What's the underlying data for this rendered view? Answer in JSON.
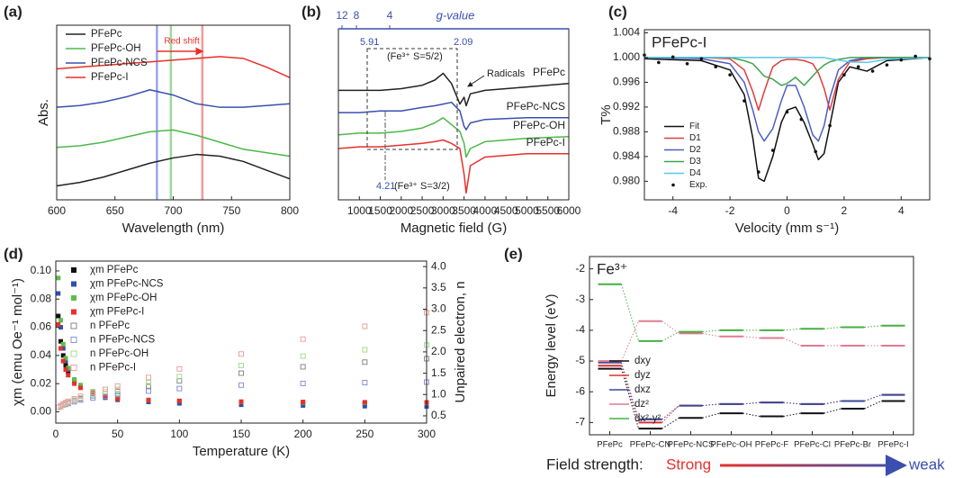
{
  "chart_data": [
    {
      "type": "line",
      "label": "(a)",
      "xlabel": "Wavelength (nm)",
      "ylabel": "Abs.",
      "xlim": [
        600,
        800
      ],
      "xticks": [
        600,
        650,
        700,
        750,
        800
      ],
      "ylim": [
        0,
        1
      ],
      "legend": "upper-left",
      "x": [
        600,
        620,
        640,
        660,
        680,
        700,
        720,
        740,
        760,
        780,
        800
      ],
      "series": [
        {
          "name": "PFePc",
          "color": "#222222",
          "values": [
            0.08,
            0.1,
            0.13,
            0.17,
            0.21,
            0.24,
            0.26,
            0.25,
            0.22,
            0.17,
            0.12
          ]
        },
        {
          "name": "PFePc-OH",
          "color": "#4db84a",
          "values": [
            0.3,
            0.31,
            0.33,
            0.36,
            0.39,
            0.4,
            0.37,
            0.33,
            0.29,
            0.27,
            0.25
          ]
        },
        {
          "name": "PFePc-NCS",
          "color": "#3a4fb0",
          "values": [
            0.53,
            0.54,
            0.56,
            0.59,
            0.63,
            0.6,
            0.55,
            0.53,
            0.53,
            0.54,
            0.55
          ]
        },
        {
          "name": "PFePc-I",
          "color": "#e8302a",
          "values": [
            0.75,
            0.76,
            0.77,
            0.78,
            0.79,
            0.8,
            0.81,
            0.82,
            0.81,
            0.76,
            0.7
          ]
        }
      ],
      "vlines": [
        686,
        698,
        725
      ],
      "vline_colors": [
        "#9aa6e6",
        "#9ed89a",
        "#f29a9a"
      ],
      "annotation": "Red shift"
    },
    {
      "type": "line",
      "label": "(b)",
      "xlabel": "Magnetic field (G)",
      "xlim": [
        500,
        6000
      ],
      "xticks": [
        1000,
        1500,
        2000,
        2500,
        3000,
        3500,
        4000,
        4500,
        5000,
        5500,
        6000
      ],
      "ylim": [
        0,
        1
      ],
      "legend": "inline",
      "top_labels": [
        "12",
        "8",
        "4"
      ],
      "top_title": "g-value",
      "annotations": [
        "5.91",
        "2.09",
        "(Fe³⁺ S=5/2)",
        "Radicals",
        "4.21",
        "(Fe³⁺ S=3/2)"
      ],
      "x": [
        500,
        1000,
        1500,
        2000,
        2500,
        2800,
        3000,
        3200,
        3400,
        3500,
        3550,
        3650,
        4000,
        5000,
        6000
      ],
      "series": [
        {
          "name": "PFePc",
          "color": "#222222",
          "values": [
            0.64,
            0.64,
            0.64,
            0.65,
            0.67,
            0.7,
            0.74,
            0.68,
            0.56,
            0.6,
            0.55,
            0.62,
            0.64,
            0.66,
            0.68
          ]
        },
        {
          "name": "PFePc-NCS",
          "color": "#3a4fb0",
          "values": [
            0.51,
            0.51,
            0.52,
            0.52,
            0.54,
            0.55,
            0.56,
            0.57,
            0.52,
            0.43,
            0.41,
            0.45,
            0.47,
            0.48,
            0.48
          ]
        },
        {
          "name": "PFePc-OH",
          "color": "#4db84a",
          "values": [
            0.38,
            0.39,
            0.39,
            0.4,
            0.42,
            0.45,
            0.48,
            0.44,
            0.4,
            0.33,
            0.25,
            0.3,
            0.34,
            0.36,
            0.37
          ]
        },
        {
          "name": "PFePc-I",
          "color": "#e8302a",
          "values": [
            0.3,
            0.31,
            0.31,
            0.32,
            0.33,
            0.34,
            0.35,
            0.33,
            0.3,
            0.15,
            0.04,
            0.2,
            0.25,
            0.27,
            0.27
          ]
        }
      ]
    },
    {
      "type": "line",
      "label": "(c)",
      "title": "PFePc-I",
      "xlabel": "Velocity (mm s⁻¹)",
      "ylabel": "T%",
      "xlim": [
        -5,
        5
      ],
      "xticks": [
        -4,
        -2,
        0,
        2,
        4
      ],
      "ylim": [
        0.977,
        1.0045
      ],
      "yticks": [
        {
          "value": 0.98,
          "label": "0.980"
        },
        0.984,
        0.988,
        0.992,
        0.996,
        {
          "value": 1,
          "label": "1.000"
        },
        1.004
      ],
      "legend": "lower-left",
      "x": [
        -5,
        -3,
        -2,
        -1.5,
        -1.2,
        -1,
        -0.8,
        -0.5,
        -0.2,
        0,
        0.3,
        0.6,
        0.9,
        1.1,
        1.3,
        1.5,
        1.8,
        2.2,
        2.8,
        3.5,
        5
      ],
      "series": [
        {
          "name": "Fit",
          "color": "#111111",
          "values": [
            0.9998,
            0.9995,
            0.998,
            0.994,
            0.987,
            0.9805,
            0.98,
            0.984,
            0.9895,
            0.9915,
            0.992,
            0.9895,
            0.986,
            0.9835,
            0.9845,
            0.989,
            0.996,
            0.9985,
            0.9978,
            0.9995,
            1.0
          ]
        },
        {
          "name": "D1",
          "color": "#e33b3b",
          "values": [
            1.0,
            1.0,
            0.9998,
            0.998,
            0.9945,
            0.9915,
            0.9945,
            0.9985,
            0.9995,
            0.9997,
            0.9997,
            0.9995,
            0.999,
            0.9975,
            0.995,
            0.9915,
            0.9965,
            0.9993,
            0.9998,
            1.0,
            1.0
          ]
        },
        {
          "name": "D2",
          "color": "#4a5fc1",
          "values": [
            1.0,
            0.9998,
            0.999,
            0.996,
            0.9915,
            0.988,
            0.9865,
            0.9885,
            0.993,
            0.9955,
            0.9955,
            0.992,
            0.9875,
            0.9865,
            0.989,
            0.9935,
            0.998,
            0.9995,
            1.0,
            1.0,
            1.0
          ]
        },
        {
          "name": "D3",
          "color": "#3fa34d",
          "values": [
            1.0,
            1.0,
            1.0,
            0.9995,
            0.999,
            0.998,
            0.997,
            0.9965,
            0.9955,
            0.9958,
            0.9968,
            0.9955,
            0.997,
            0.998,
            0.9988,
            0.9993,
            0.9997,
            1.0,
            1.0,
            1.0,
            1.0
          ]
        },
        {
          "name": "D4",
          "color": "#55c8e8",
          "values": [
            1.0,
            1.0,
            1.0,
            1.0,
            1.0,
            1.0,
            1.0,
            1.0,
            1.0,
            1.0,
            1.0,
            1.0,
            1.0,
            1.0,
            1.0,
            0.9998,
            0.9996,
            0.9993,
            0.9992,
            0.9997,
            1.0
          ]
        },
        {
          "name": "Exp.",
          "color": "#111111",
          "marker": "dot",
          "x": [
            -5,
            -4.5,
            -4,
            -3.5,
            -3,
            -2.5,
            -2,
            -1.5,
            -1,
            -0.5,
            0,
            0.5,
            1,
            1.5,
            2,
            2.5,
            3,
            3.5,
            4,
            4.5,
            5
          ],
          "values": [
            1.0004,
            0.9992,
            1.0001,
            0.999,
            0.9998,
            0.9985,
            0.9972,
            0.993,
            0.9815,
            0.985,
            0.9912,
            0.99,
            0.9848,
            0.989,
            0.9972,
            0.9985,
            0.9978,
            0.9988,
            0.9996,
            1.0002,
            0.9998
          ]
        }
      ]
    },
    {
      "type": "scatter",
      "label": "(d)",
      "xlabel": "Temperature (K)",
      "ylabel": "χm (emu Oe⁻¹ mol⁻¹)",
      "y2label": "Unpaired electron, n",
      "xlim": [
        0,
        300
      ],
      "xticks": [
        0,
        50,
        100,
        150,
        200,
        250,
        300
      ],
      "ylim": [
        -0.008,
        0.107
      ],
      "yticks": [
        {
          "value": 0,
          "label": "0.00"
        },
        {
          "value": 0.02,
          "label": "0.02"
        },
        {
          "value": 0.04,
          "label": "0.04"
        },
        {
          "value": 0.06,
          "label": "0.06"
        },
        {
          "value": 0.08,
          "label": "0.08"
        },
        {
          "value": 0.1,
          "label": "0.10"
        }
      ],
      "y2lim": [
        0.33,
        4.13
      ],
      "y2ticks": [
        0.5,
        {
          "value": 1,
          "label": "1.0"
        },
        1.5,
        {
          "value": 2,
          "label": "2.0"
        },
        2.5,
        {
          "value": 3,
          "label": "3.0"
        },
        3.5,
        {
          "value": 4,
          "label": "4.0"
        }
      ],
      "legend": "upper-left",
      "x": [
        2,
        4,
        6,
        8,
        10,
        15,
        20,
        30,
        40,
        50,
        75,
        100,
        150,
        200,
        250,
        300
      ],
      "series": [
        {
          "name": "χm PFePc",
          "color": "#111111",
          "marker": "filled-square",
          "values": [
            0.068,
            0.05,
            0.04,
            0.033,
            0.028,
            0.022,
            0.018,
            0.014,
            0.011,
            0.0095,
            0.008,
            0.0072,
            0.0065,
            0.006,
            0.0057,
            0.0055
          ]
        },
        {
          "name": "χm PFePc-NCS",
          "color": "#3050b0",
          "marker": "filled-square",
          "values": [
            0.084,
            0.06,
            0.045,
            0.036,
            0.03,
            0.022,
            0.018,
            0.013,
            0.01,
            0.0085,
            0.007,
            0.006,
            0.005,
            0.0045,
            0.004,
            0.0038
          ]
        },
        {
          "name": "χm PFePc-OH",
          "color": "#5cbf4a",
          "marker": "filled-square",
          "values": [
            0.095,
            0.065,
            0.048,
            0.038,
            0.031,
            0.023,
            0.019,
            0.0145,
            0.0115,
            0.01,
            0.0085,
            0.0078,
            0.007,
            0.0066,
            0.0064,
            0.0062
          ]
        },
        {
          "name": "χm PFePc-I",
          "color": "#e8302a",
          "marker": "filled-square",
          "values": [
            0.062,
            0.045,
            0.036,
            0.03,
            0.026,
            0.02,
            0.017,
            0.013,
            0.0105,
            0.0092,
            0.0082,
            0.0077,
            0.0072,
            0.007,
            0.0068,
            0.0067
          ]
        },
        {
          "name": "n PFePc",
          "color": "#8a8a8a",
          "marker": "open-square",
          "axis": "y2",
          "values": [
            0.7,
            0.73,
            0.76,
            0.79,
            0.81,
            0.86,
            0.9,
            0.97,
            1.02,
            1.07,
            1.2,
            1.32,
            1.5,
            1.65,
            1.76,
            1.84
          ]
        },
        {
          "name": "n PFePc-NCS",
          "color": "#8a90d8",
          "marker": "open-square",
          "axis": "y2",
          "values": [
            0.7,
            0.72,
            0.75,
            0.77,
            0.79,
            0.83,
            0.87,
            0.92,
            0.96,
            1.0,
            1.08,
            1.14,
            1.22,
            1.26,
            1.28,
            1.29
          ]
        },
        {
          "name": "n PFePc-OH",
          "color": "#a6dc90",
          "marker": "open-square",
          "axis": "y2",
          "values": [
            0.7,
            0.73,
            0.76,
            0.79,
            0.82,
            0.87,
            0.92,
            1.0,
            1.06,
            1.12,
            1.28,
            1.42,
            1.68,
            1.9,
            2.05,
            2.16
          ]
        },
        {
          "name": "n PFePc-I",
          "color": "#f0a0a0",
          "marker": "open-square",
          "axis": "y2",
          "values": [
            0.7,
            0.74,
            0.78,
            0.81,
            0.84,
            0.9,
            0.96,
            1.05,
            1.12,
            1.2,
            1.4,
            1.6,
            1.95,
            2.3,
            2.6,
            2.92
          ]
        }
      ]
    },
    {
      "type": "levels",
      "label": "(e)",
      "title": "Fe³⁺",
      "ylabel": "Energy level (eV)",
      "ylim": [
        -7.4,
        -1.6
      ],
      "yticks": [
        -7,
        -6,
        -5,
        -4,
        -3,
        -2
      ],
      "legend": "lower-left",
      "categories": [
        "PFePc",
        "PFePc-CN",
        "PFePc-NCS",
        "PFePc-OH",
        "PFePc-F",
        "PFePc-Cl",
        "PFePc-Br",
        "PFePc-I"
      ],
      "series": [
        {
          "name": "dxy",
          "color": "#111111",
          "values": [
            -5.25,
            -7.2,
            -6.85,
            -6.7,
            -6.8,
            -6.7,
            -6.55,
            -6.3
          ]
        },
        {
          "name": "dyz",
          "color": "#e03030",
          "values": [
            -5.15,
            -7.0,
            -6.45,
            -6.4,
            -6.35,
            -6.4,
            -6.3,
            -6.1
          ]
        },
        {
          "name": "dxz",
          "color": "#3a4a9a",
          "values": [
            -5.05,
            -6.9,
            -6.45,
            -6.4,
            -6.35,
            -6.4,
            -6.3,
            -6.1
          ]
        },
        {
          "name": "dz²",
          "color": "#e07a90",
          "values": [
            -5.0,
            -3.7,
            -4.1,
            -4.2,
            -4.25,
            -4.5,
            -4.5,
            -4.5
          ]
        },
        {
          "name": "dx²-y²",
          "color": "#44b040",
          "values": [
            -2.5,
            -4.35,
            -4.05,
            -4.0,
            -4.0,
            -3.95,
            -3.9,
            -3.85
          ]
        }
      ],
      "footer_label": "Field strength:",
      "footer_start": "Strong",
      "footer_end": "weak"
    }
  ]
}
